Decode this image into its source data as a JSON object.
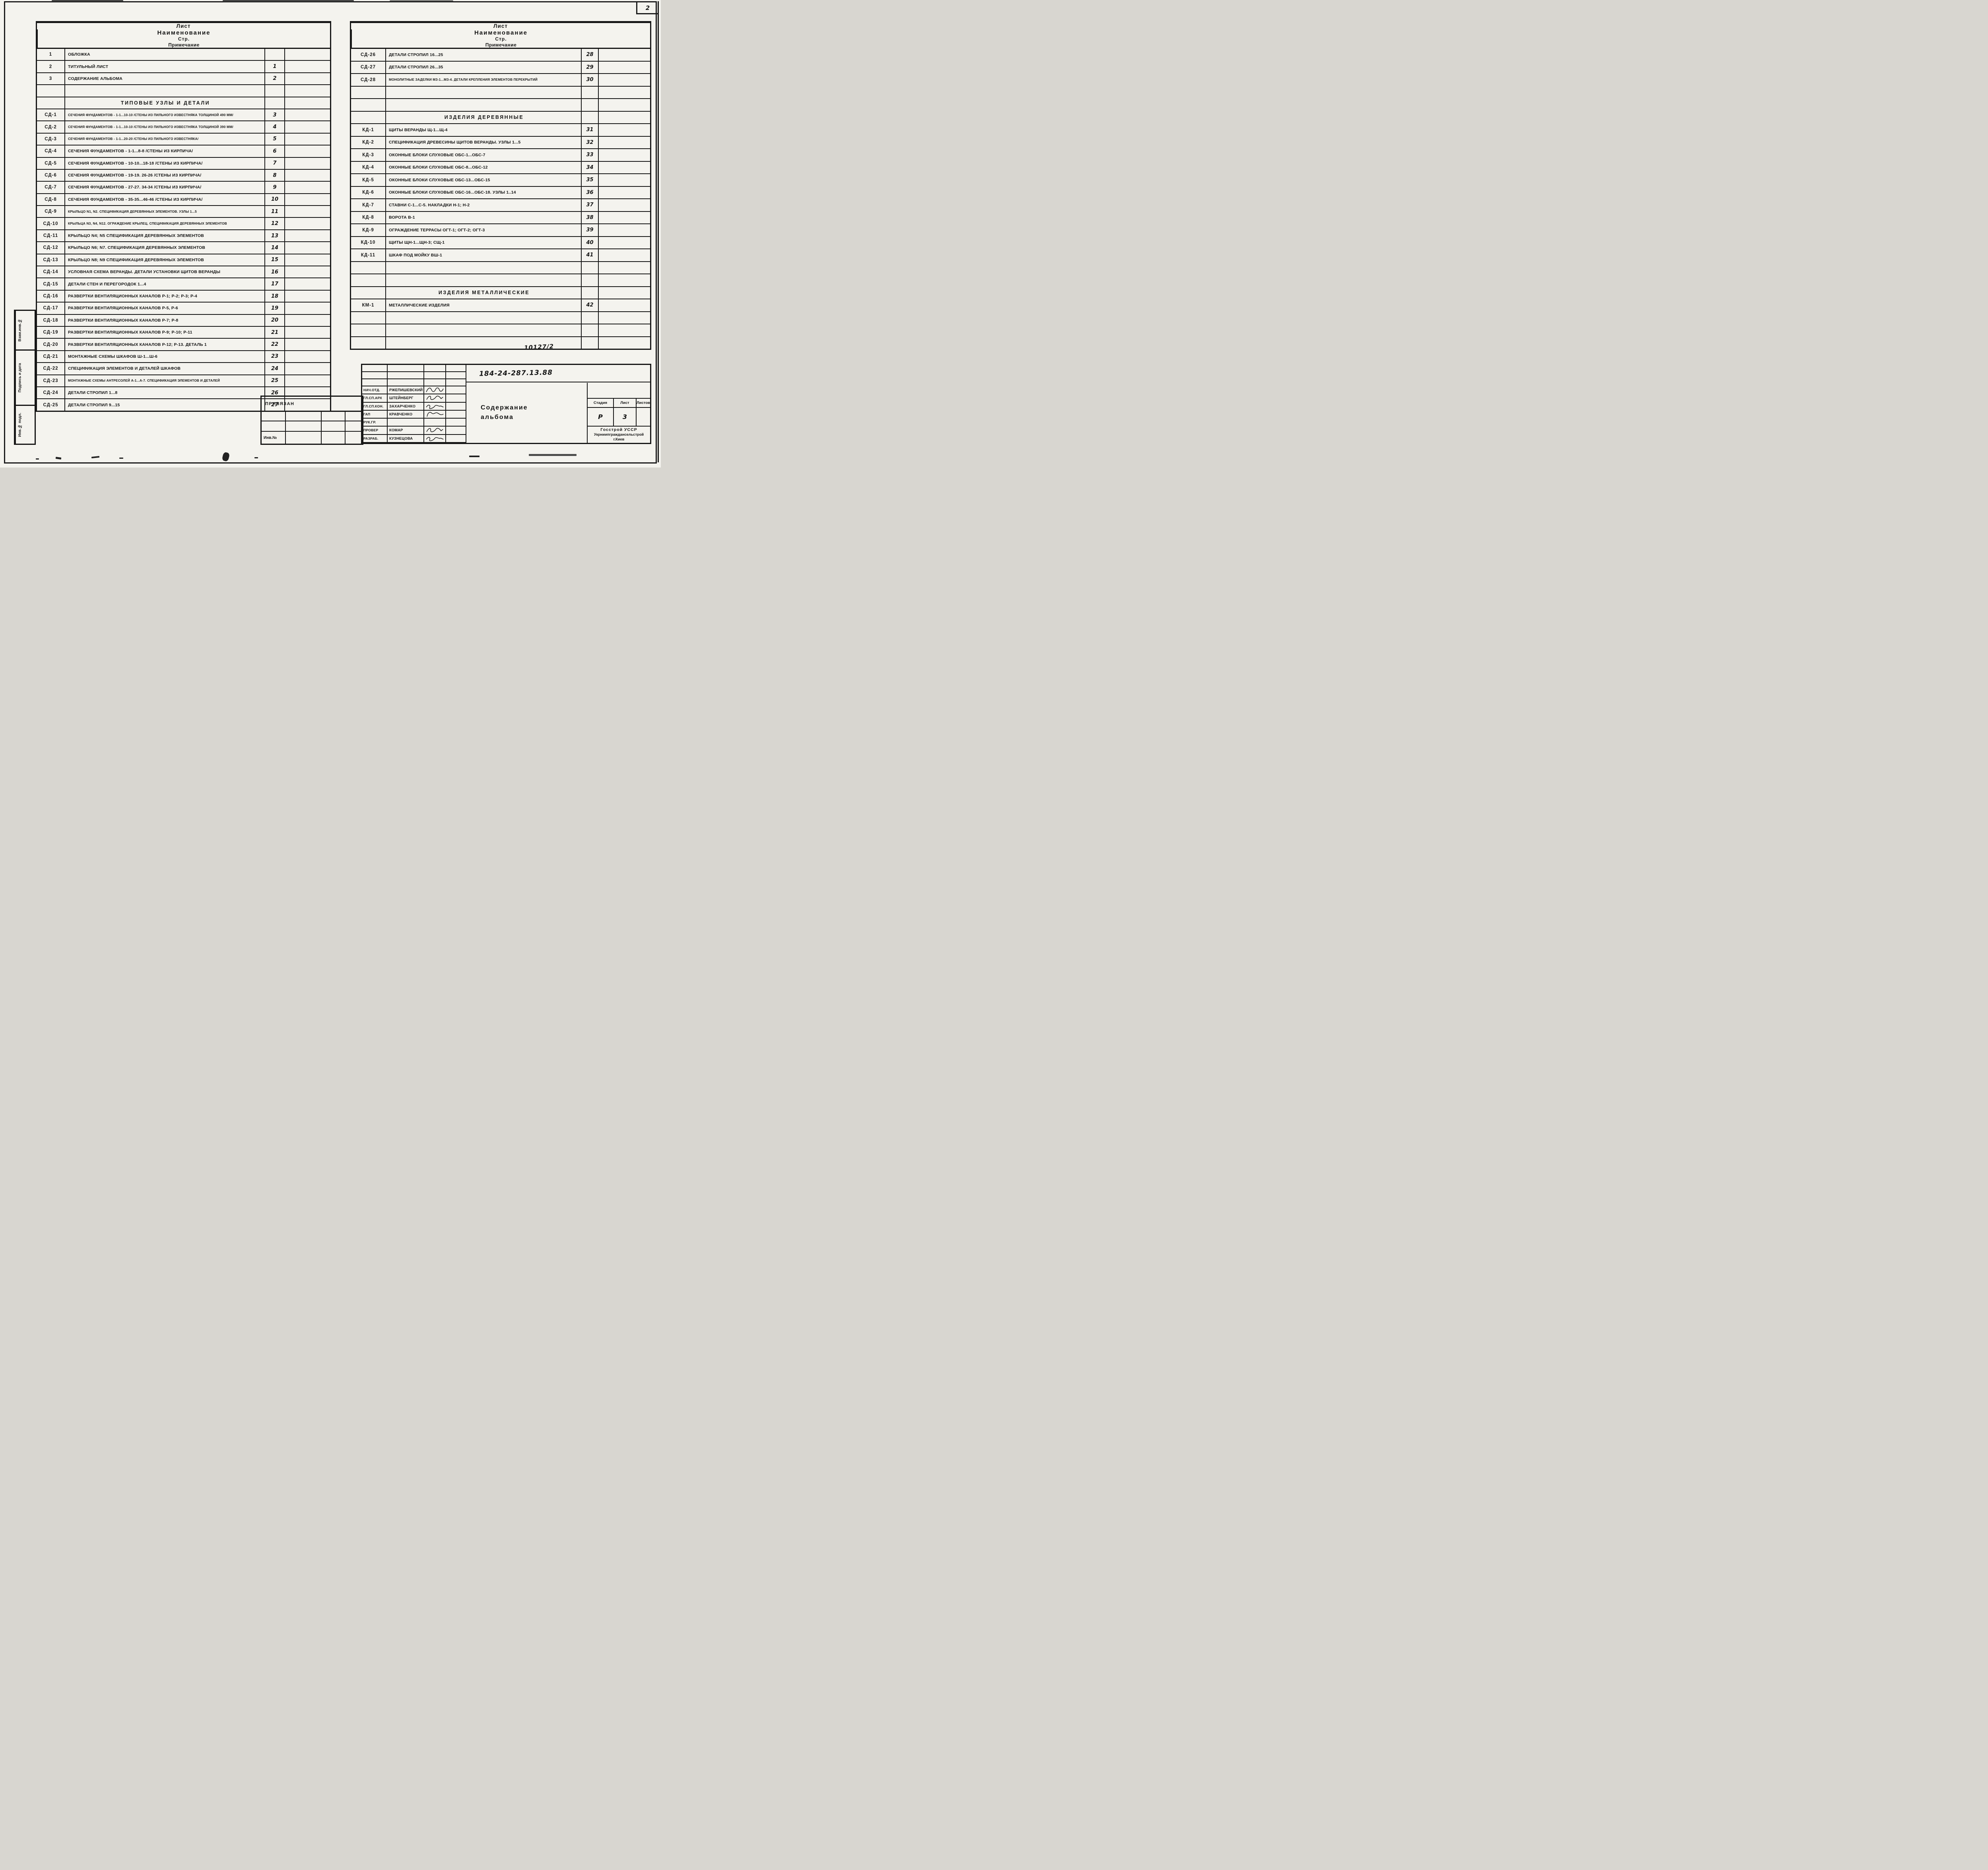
{
  "page": {
    "corner_number": "2",
    "album_number": "10127/2",
    "doc_number": "184-24-287.13.88"
  },
  "table_headers": {
    "sheet": "Лист",
    "name": "Наименование",
    "page": "Стр.",
    "note": "Примечание"
  },
  "left_table": {
    "rows": [
      {
        "type": "item",
        "id": "1",
        "name": "ОБЛОЖКА",
        "page": ""
      },
      {
        "type": "item",
        "id": "2",
        "name": "ТИТУЛЬНЫЙ  ЛИСТ",
        "page": "1"
      },
      {
        "type": "item",
        "id": "3",
        "name": "СОДЕРЖАНИЕ  АЛЬБОМА",
        "page": "2"
      },
      {
        "type": "blank"
      },
      {
        "type": "section",
        "name": "ТИПОВЫЕ  УЗЛЫ  И  ДЕТАЛИ"
      },
      {
        "type": "item",
        "id": "СД-1",
        "name": "СЕЧЕНИЯ ФУНДАМЕНТОВ - 1-1...10-10 /СТЕНЫ ИЗ ПИЛЬНОГО ИЗВЕСТНЯКА ТОЛЩИНОЙ 490 ММ/",
        "page": "3"
      },
      {
        "type": "item",
        "id": "СД-2",
        "name": "СЕЧЕНИЯ ФУНДАМЕНТОВ - 1-1...10-10 /СТЕНЫ ИЗ ПИЛЬНОГО ИЗВЕСТНЯКА ТОЛЩИНОЙ 390 ММ/",
        "page": "4"
      },
      {
        "type": "item",
        "id": "СД-3",
        "name": "СЕЧЕНИЯ ФУНДАМЕНТОВ - 1-1...20-20 /СТЕНЫ ИЗ ПИЛЬНОГО ИЗВЕСТНЯКА/",
        "page": "5"
      },
      {
        "type": "item",
        "id": "СД-4",
        "name": "СЕЧЕНИЯ ФУНДАМЕНТОВ - 1-1...8-8 /СТЕНЫ ИЗ КИРПИЧА/",
        "page": "6"
      },
      {
        "type": "item",
        "id": "СД-5",
        "name": "СЕЧЕНИЯ ФУНДАМЕНТОВ - 10-10...18-18 /СТЕНЫ ИЗ КИРПИЧА/",
        "page": "7"
      },
      {
        "type": "item",
        "id": "СД-6",
        "name": "СЕЧЕНИЯ ФУНДАМЕНТОВ - 19-19. 26-26 /СТЕНЫ ИЗ КИРПИЧА/",
        "page": "8"
      },
      {
        "type": "item",
        "id": "СД-7",
        "name": "СЕЧЕНИЯ ФУНДАМЕНТОВ - 27-27. 34-34 /СТЕНЫ ИЗ КИРПИЧА/",
        "page": "9"
      },
      {
        "type": "item",
        "id": "СД-8",
        "name": "СЕЧЕНИЯ ФУНДАМЕНТОВ - 35-35...46-46 /СТЕНЫ ИЗ КИРПИЧА/",
        "page": "10"
      },
      {
        "type": "item",
        "id": "СД-9",
        "name": "КРЫЛЬЦО N1, N2. СПЕЦИФИКАЦИЯ ДЕРЕВЯННЫХ ЭЛЕМЕНТОВ. УЗЛЫ 1...5",
        "page": "11"
      },
      {
        "type": "item",
        "id": "СД-10",
        "name": "КРЫЛЬЦА N3, N4, N12. ОГРАЖДЕНИЕ КРЫЛЕЦ. СПЕЦИФИКАЦИЯ ДЕРЕВЯННЫХ ЭЛЕМЕНТОВ",
        "page": "12"
      },
      {
        "type": "item",
        "id": "СД-11",
        "name": "КРЫЛЬЦО N4; N5 СПЕЦИФИКАЦИЯ ДЕРЕВЯННЫХ ЭЛЕМЕНТОВ",
        "page": "13"
      },
      {
        "type": "item",
        "id": "СД-12",
        "name": "КРЫЛЬЦО N6; N7. СПЕЦИФИКАЦИЯ ДЕРЕВЯННЫХ ЭЛЕМЕНТОВ",
        "page": "14"
      },
      {
        "type": "item",
        "id": "СД-13",
        "name": "КРЫЛЬЦО N8; N9 СПЕЦИФИКАЦИЯ ДЕРЕВЯННЫХ ЭЛЕМЕНТОВ",
        "page": "15"
      },
      {
        "type": "item",
        "id": "СД-14",
        "name": "УСЛОВНАЯ СХЕМА ВЕРАНДЫ. ДЕТАЛИ УСТАНОВКИ ЩИТОВ ВЕРАНДЫ",
        "page": "16"
      },
      {
        "type": "item",
        "id": "СД-15",
        "name": "ДЕТАЛИ СТЕН И ПЕРЕГОРОДОК 1...4",
        "page": "17"
      },
      {
        "type": "item",
        "id": "СД-16",
        "name": "РАЗВЕРТКИ ВЕНТИЛЯЦИОННЫХ КАНАЛОВ Р-1; Р-2; Р-3; Р-4",
        "page": "18"
      },
      {
        "type": "item",
        "id": "СД-17",
        "name": "РАЗВЕРТКИ ВЕНТИЛЯЦИОННЫХ КАНАЛОВ Р-5, Р-6",
        "page": "19"
      },
      {
        "type": "item",
        "id": "СД-18",
        "name": "РАЗВЕРТКИ ВЕНТИЛЯЦИОННЫХ КАНАЛОВ Р-7; Р-8",
        "page": "20"
      },
      {
        "type": "item",
        "id": "СД-19",
        "name": "РАЗВЕРТКИ ВЕНТИЛЯЦИОННЫХ КАНАЛОВ Р-9; Р-10; Р-11",
        "page": "21"
      },
      {
        "type": "item",
        "id": "СД-20",
        "name": "РАЗВЕРТКИ ВЕНТИЛЯЦИОННЫХ КАНАЛОВ Р-12; Р-13. ДЕТАЛЬ 1",
        "page": "22"
      },
      {
        "type": "item",
        "id": "СД-21",
        "name": "МОНТАЖНЫЕ СХЕМЫ ШКАФОВ Ш-1...Ш-6",
        "page": "23"
      },
      {
        "type": "item",
        "id": "СД-22",
        "name": "СПЕЦИФИКАЦИЯ ЭЛЕМЕНТОВ И ДЕТАЛЕЙ ШКАФОВ",
        "page": "24"
      },
      {
        "type": "item",
        "id": "СД-23",
        "name": "МОНТАЖНЫЕ СХЕМЫ АНТРЕСОЛЕЙ А-1...А-7. СПЕЦИФИКАЦИЯ ЭЛЕМЕНТОВ И ДЕТАЛЕЙ",
        "page": "25"
      },
      {
        "type": "item",
        "id": "СД-24",
        "name": "ДЕТАЛИ СТРОПИЛ 1...8",
        "page": "26"
      },
      {
        "type": "item",
        "id": "СД-25",
        "name": "ДЕТАЛИ СТРОПИЛ 9...15",
        "page": "27"
      }
    ]
  },
  "right_table": {
    "rows": [
      {
        "type": "item",
        "id": "СД-26",
        "name": "ДЕТАЛИ СТРОПИЛ 16...25",
        "page": "28"
      },
      {
        "type": "item",
        "id": "СД-27",
        "name": "ДЕТАЛИ СТРОПИЛ 26...35",
        "page": "29"
      },
      {
        "type": "item",
        "id": "СД-28",
        "name": "МОНОЛИТНЫЕ ЗАДЕЛКИ МЗ-1...МЗ-4. ДЕТАЛИ КРЕПЛЕНИЯ ЭЛЕМЕНТОВ ПЕРЕКРЫТИЙ",
        "page": "30"
      },
      {
        "type": "blank"
      },
      {
        "type": "blank"
      },
      {
        "type": "section",
        "name": "ИЗДЕЛИЯ  ДЕРЕВЯННЫЕ"
      },
      {
        "type": "item",
        "id": "КД-1",
        "name": "ЩИТЫ ВЕРАНДЫ Щ-1...Щ-4",
        "page": "31"
      },
      {
        "type": "item",
        "id": "КД-2",
        "name": "СПЕЦИФИКАЦИЯ ДРЕВЕСИНЫ ЩИТОВ ВЕРАНДЫ. УЗЛЫ 1...5",
        "page": "32"
      },
      {
        "type": "item",
        "id": "КД-3",
        "name": "ОКОННЫЕ БЛОКИ СЛУХОВЫЕ ОБС-1...ОБС-7",
        "page": "33"
      },
      {
        "type": "item",
        "id": "КД-4",
        "name": "ОКОННЫЕ БЛОКИ СЛУХОВЫЕ ОБС-8...ОБС-12",
        "page": "34"
      },
      {
        "type": "item",
        "id": "КД-5",
        "name": "ОКОННЫЕ БЛОКИ СЛУХОВЫЕ ОБС-13...ОБС-15",
        "page": "35"
      },
      {
        "type": "item",
        "id": "КД-6",
        "name": "ОКОННЫЕ БЛОКИ СЛУХОВЫЕ ОБС-16...ОБС-18. УЗЛЫ 1..14",
        "page": "36"
      },
      {
        "type": "item",
        "id": "КД-7",
        "name": "СТАВНИ С-1...С-5. НАКЛАДКИ Н-1; Н-2",
        "page": "37"
      },
      {
        "type": "item",
        "id": "КД-8",
        "name": "ВОРОТА В-1",
        "page": "38"
      },
      {
        "type": "item",
        "id": "КД-9",
        "name": "ОГРАЖДЕНИЕ ТЕРРАСЫ ОГТ-1; ОГТ-2; ОГТ-3",
        "page": "39"
      },
      {
        "type": "item",
        "id": "КД-10",
        "name": "ЩИТЫ ЩН-1...ЩН-3; СЩ-1",
        "page": "40"
      },
      {
        "type": "item",
        "id": "КД-11",
        "name": "ШКАФ ПОД МОЙКУ  ВШ-1",
        "page": "41"
      },
      {
        "type": "blank"
      },
      {
        "type": "blank"
      },
      {
        "type": "section",
        "name": "ИЗДЕЛИЯ  МЕТАЛЛИЧЕСКИЕ"
      },
      {
        "type": "item",
        "id": "КМ-1",
        "name": "МЕТАЛЛИЧЕСКИЕ ИЗДЕЛИЯ",
        "page": "42"
      },
      {
        "type": "blank"
      },
      {
        "type": "blank"
      },
      {
        "type": "blank"
      }
    ]
  },
  "sidebar": {
    "labels": [
      "Взам.инв.№",
      "Подпись и дата",
      "Инв.№ подл."
    ]
  },
  "title_block": {
    "attached_label": "ПРИВЯЗАН",
    "inv_label": "Инв.№",
    "staff": [
      {
        "role": "НАЧ.ОТД.",
        "name": "РЖЕПИШЕВСКИЙ",
        "signed": true
      },
      {
        "role": "ГЛ.СП.АРХ",
        "name": "ШТЕЙНБЕРГ",
        "signed": true
      },
      {
        "role": "ГЛ.СП.КОН.",
        "name": "ЗАХАРЧЕНКО",
        "signed": true
      },
      {
        "role": "ГАП",
        "name": "КРАВЧЕНКО",
        "signed": true
      },
      {
        "role": "РУК.ГР.",
        "name": "",
        "signed": false
      },
      {
        "role": "ПРОВЕР",
        "name": "КОМАР",
        "signed": true
      },
      {
        "role": "РАЗРАБ.",
        "name": "КУЗНЕЦОВА",
        "signed": true
      }
    ],
    "title_line1": "Содержание",
    "title_line2": "альбома",
    "stage_label": "Стадия",
    "sheet_label": "Лист",
    "sheets_label": "Листов",
    "stage_value": "Р",
    "sheet_value": "3",
    "sheets_value": "",
    "organization": [
      "Госстрой  УССР",
      "Укрниипграждансельстрой",
      "г.Киев"
    ]
  },
  "colors": {
    "ink": "#181818",
    "paper": "#f4f3ee"
  }
}
